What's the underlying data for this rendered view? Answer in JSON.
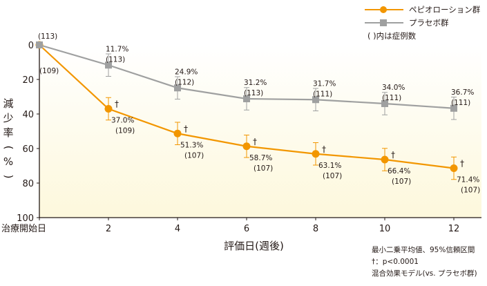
{
  "chart_data": {
    "type": "line",
    "ylabel": "減少率(%)",
    "xlabel": "評価日(週後)",
    "ylim": [
      0,
      100
    ],
    "y_inverted": true,
    "yticks": [
      "0",
      "20",
      "40",
      "60",
      "80",
      "100"
    ],
    "x": [
      0,
      2,
      4,
      6,
      8,
      10,
      12
    ],
    "xtick_labels": [
      "治療開始日",
      "2",
      "4",
      "6",
      "8",
      "10",
      "12"
    ],
    "series": [
      {
        "name": "ペピオローション群",
        "color": "#f29600",
        "marker": "circle",
        "values": [
          0,
          37.0,
          51.3,
          58.7,
          63.1,
          66.4,
          71.4
        ],
        "error": [
          0,
          6.5,
          6.5,
          6.5,
          6.5,
          6.5,
          6.5
        ],
        "value_labels": [
          "",
          "37.0%",
          "51.3%",
          "58.7%",
          "63.1%",
          "66.4%",
          "71.4%"
        ],
        "n_labels": [
          "(109)",
          "(109)",
          "(107)",
          "(107)",
          "(107)",
          "(107)",
          "(107)"
        ],
        "significance": [
          "",
          "†",
          "†",
          "†",
          "†",
          "†",
          "†"
        ]
      },
      {
        "name": "プラセボ群",
        "color": "#9fa0a0",
        "marker": "square",
        "values": [
          0,
          11.7,
          24.9,
          31.2,
          31.7,
          34.0,
          36.7
        ],
        "error": [
          0,
          6.5,
          6.5,
          6.5,
          6.5,
          6.5,
          6.5
        ],
        "value_labels": [
          "",
          "11.7%",
          "24.9%",
          "31.2%",
          "31.7%",
          "34.0%",
          "36.7%"
        ],
        "n_labels": [
          "(113)",
          "(113)",
          "(112)",
          "(113)",
          "(111)",
          "(111)",
          "(111)"
        ]
      }
    ]
  },
  "legend": {
    "note": "(  )内は症例数"
  },
  "footnotes": [
    "最小二乗平均値、95%信頼区間",
    "†：p<0.0001",
    "混合効果モデル(vs. プラセボ群)"
  ],
  "colors": {
    "axis": "#231815",
    "background_gradient_end": "#fdf9e1"
  }
}
